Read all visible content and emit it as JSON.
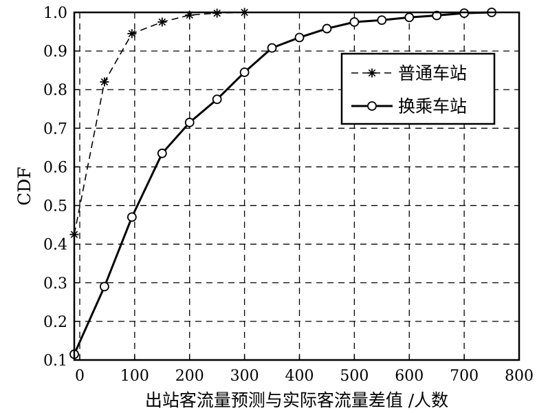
{
  "chart_data": {
    "type": "line",
    "xlabel": "出站客流量预测与实际客流量差值 /人数",
    "ylabel": "CDF",
    "xlim": [
      -10,
      800
    ],
    "ylim": [
      0.1,
      1.0
    ],
    "x_ticks": [
      {
        "value": 0,
        "label": "0"
      },
      {
        "value": 100,
        "label": "100"
      },
      {
        "value": 200,
        "label": "200"
      },
      {
        "value": 300,
        "label": "300"
      },
      {
        "value": 400,
        "label": "400"
      },
      {
        "value": 500,
        "label": "500"
      },
      {
        "value": 600,
        "label": "600"
      },
      {
        "value": 700,
        "label": "700"
      },
      {
        "value": 800,
        "label": "800"
      }
    ],
    "y_ticks": [
      {
        "value": 0.1,
        "label": "0.1"
      },
      {
        "value": 0.2,
        "label": "0.2"
      },
      {
        "value": 0.3,
        "label": "0.3"
      },
      {
        "value": 0.4,
        "label": "0.4"
      },
      {
        "value": 0.5,
        "label": "0.5"
      },
      {
        "value": 0.6,
        "label": "0.6"
      },
      {
        "value": 0.7,
        "label": "0.7"
      },
      {
        "value": 0.8,
        "label": "0.8"
      },
      {
        "value": 0.9,
        "label": "0.9"
      },
      {
        "value": 1.0,
        "label": "1.0"
      }
    ],
    "grid": true,
    "legend_position": "top-right",
    "series": [
      {
        "name": "普通车站",
        "line_style": "dashed",
        "marker": "star",
        "x": [
          -10,
          45,
          95,
          150,
          200,
          250,
          300
        ],
        "y": [
          0.425,
          0.82,
          0.945,
          0.975,
          0.993,
          0.998,
          1.0
        ]
      },
      {
        "name": "换乘车站",
        "line_style": "solid",
        "marker": "circle",
        "x": [
          -10,
          45,
          95,
          150,
          200,
          250,
          300,
          350,
          400,
          450,
          500,
          550,
          600,
          650,
          700,
          750
        ],
        "y": [
          0.115,
          0.29,
          0.47,
          0.635,
          0.715,
          0.775,
          0.845,
          0.908,
          0.935,
          0.958,
          0.975,
          0.98,
          0.987,
          0.992,
          0.998,
          1.0
        ]
      }
    ]
  }
}
